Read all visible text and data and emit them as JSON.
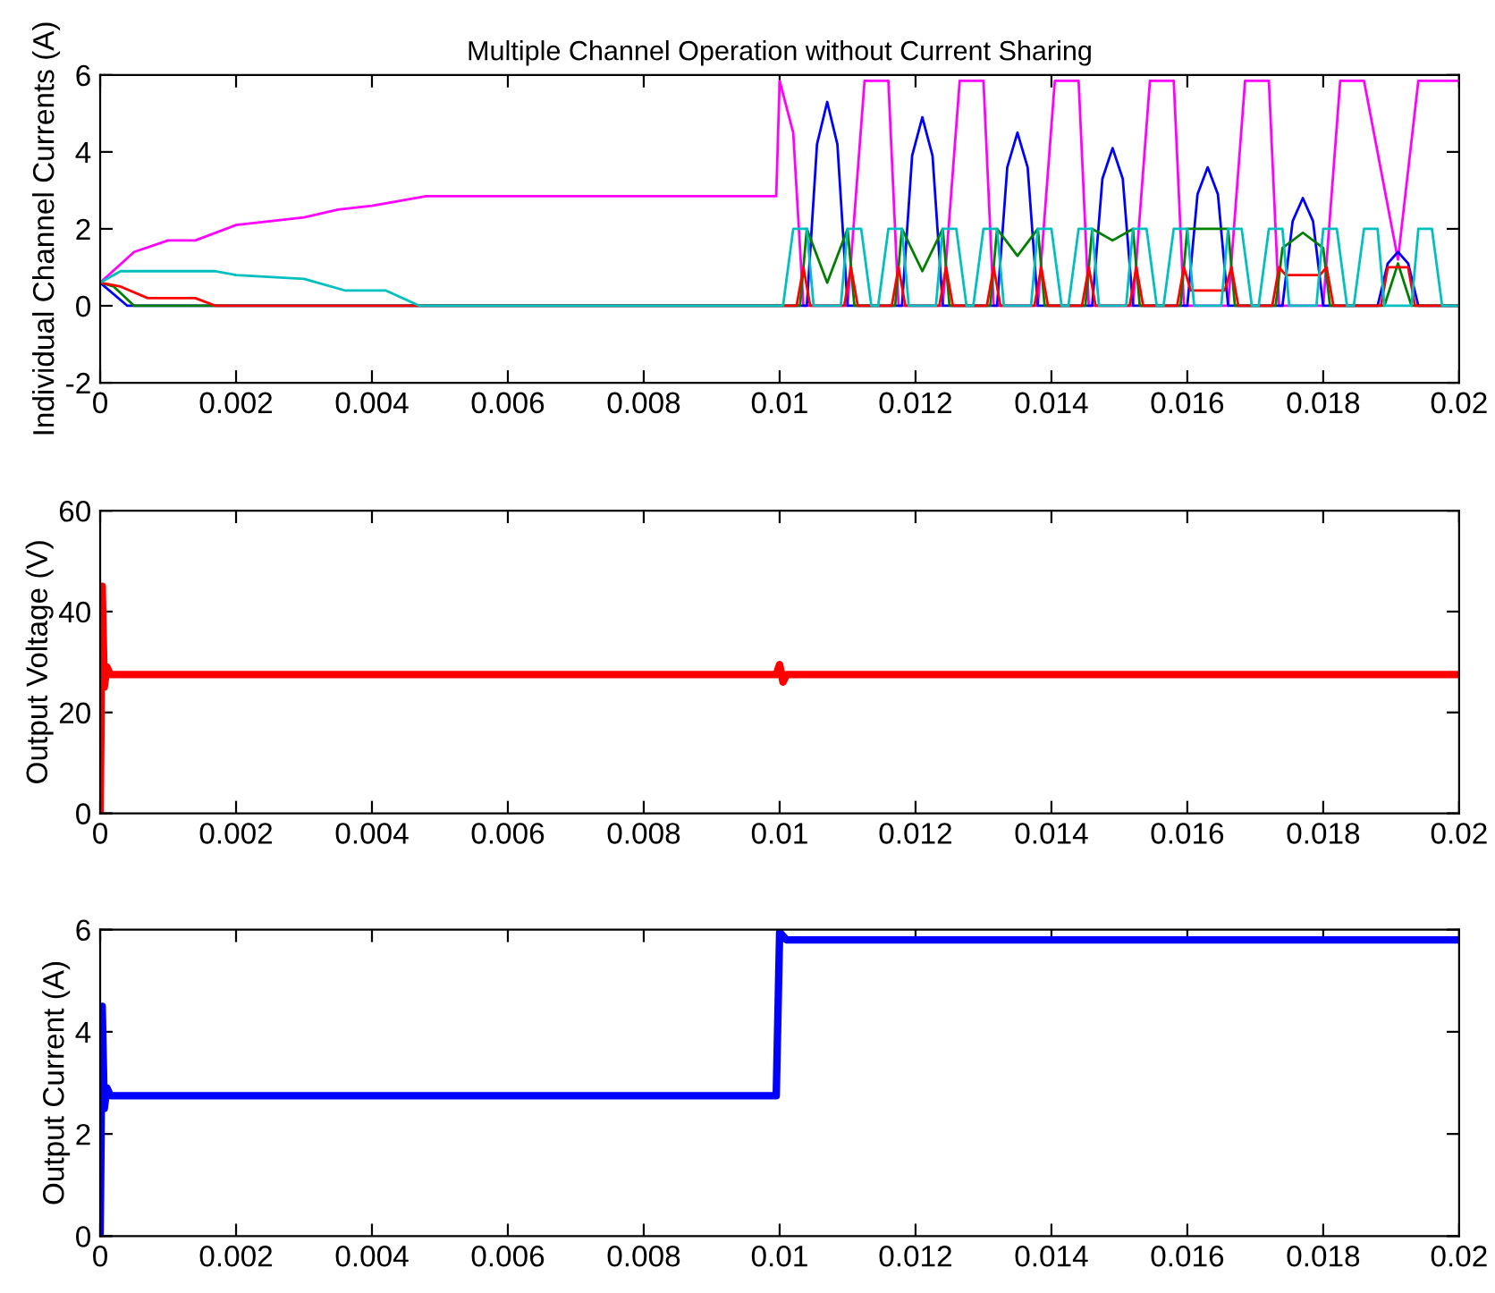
{
  "chart_data": [
    {
      "type": "line",
      "title": "Multiple Channel Operation without Current Sharing",
      "ylabel": "Individual Channel Currents (A)",
      "xlim": [
        0,
        0.02
      ],
      "ylim": [
        -2,
        6
      ],
      "xticks": [
        0,
        0.002,
        0.004,
        0.006,
        0.008,
        0.01,
        0.012,
        0.014,
        0.016,
        0.018,
        0.02
      ],
      "yticks": [
        -2,
        0,
        2,
        4,
        6
      ],
      "series": [
        {
          "color": "#ff00ff",
          "x": [
            0,
            0.0005,
            0.001,
            0.0014,
            0.002,
            0.0025,
            0.003,
            0.0035,
            0.004,
            0.0048,
            0.00995,
            0.01,
            0.0102,
            0.01035,
            0.011,
            0.01125,
            0.0116,
            0.01175,
            0.0124,
            0.01265,
            0.013,
            0.01315,
            0.0138,
            0.01405,
            0.0144,
            0.01455,
            0.0152,
            0.01545,
            0.0158,
            0.01595,
            0.0166,
            0.01685,
            0.0172,
            0.01735,
            0.018,
            0.01825,
            0.0186,
            0.0191,
            0.0194,
            0.02
          ],
          "values": [
            0.6,
            1.4,
            1.7,
            1.7,
            2.1,
            2.2,
            2.3,
            2.5,
            2.6,
            2.85,
            2.85,
            5.85,
            4.5,
            0,
            0,
            5.85,
            5.85,
            0,
            0,
            5.85,
            5.85,
            0,
            0,
            5.85,
            5.85,
            0,
            0,
            5.85,
            5.85,
            0,
            0,
            5.85,
            5.85,
            0,
            0,
            5.85,
            5.85,
            1.2,
            5.85,
            5.85
          ]
        },
        {
          "color": "#0000ff",
          "x": [
            0,
            0.0004,
            0.0104,
            0.01055,
            0.0107,
            0.01085,
            0.011,
            0.0118,
            0.01195,
            0.0121,
            0.01225,
            0.0124,
            0.0132,
            0.01335,
            0.0135,
            0.01365,
            0.0138,
            0.0146,
            0.01475,
            0.0149,
            0.01505,
            0.0152,
            0.016,
            0.01615,
            0.0163,
            0.01645,
            0.0166,
            0.0174,
            0.01755,
            0.0177,
            0.01785,
            0.018,
            0.0188,
            0.01895,
            0.0191,
            0.01925,
            0.0194,
            0.02
          ],
          "values": [
            0.6,
            0,
            0,
            4.2,
            5.3,
            4.2,
            0,
            0,
            3.9,
            4.9,
            3.9,
            0,
            0,
            3.6,
            4.5,
            3.6,
            0,
            0,
            3.3,
            4.1,
            3.3,
            0,
            0,
            2.9,
            3.6,
            2.9,
            0,
            0,
            2.2,
            2.8,
            2.2,
            0,
            0,
            1.1,
            1.4,
            1.1,
            0,
            0
          ]
        },
        {
          "color": "#008000",
          "x": [
            0,
            0.0002,
            0.0005,
            0.0103,
            0.0104,
            0.0107,
            0.011,
            0.0111,
            0.0117,
            0.0118,
            0.0121,
            0.0124,
            0.0125,
            0.0131,
            0.0132,
            0.0135,
            0.0138,
            0.0139,
            0.0145,
            0.0146,
            0.0149,
            0.0152,
            0.0153,
            0.0159,
            0.016,
            0.0163,
            0.0166,
            0.0167,
            0.0173,
            0.0174,
            0.0177,
            0.018,
            0.0181,
            0.0189,
            0.0191,
            0.0193,
            0.02
          ],
          "values": [
            0.6,
            0.5,
            0,
            0,
            2,
            0.6,
            2,
            0,
            0,
            2,
            0.9,
            2,
            0,
            0,
            2,
            1.3,
            2,
            0,
            0,
            2,
            1.7,
            2,
            0,
            0,
            2,
            2,
            2,
            0,
            0,
            1.5,
            1.9,
            1.5,
            0,
            0,
            1.1,
            0,
            0
          ]
        },
        {
          "color": "#ff0000",
          "x": [
            0,
            0.0003,
            0.0007,
            0.0014,
            0.0017,
            0.01025,
            0.01035,
            0.01045,
            0.01095,
            0.01105,
            0.01115,
            0.01165,
            0.01175,
            0.01185,
            0.01235,
            0.01245,
            0.01255,
            0.01305,
            0.01315,
            0.01325,
            0.01375,
            0.01385,
            0.01395,
            0.01445,
            0.01455,
            0.01465,
            0.01515,
            0.01525,
            0.01535,
            0.01585,
            0.01595,
            0.01605,
            0.01655,
            0.01665,
            0.01675,
            0.01725,
            0.01735,
            0.01745,
            0.01795,
            0.01805,
            0.01815,
            0.01885,
            0.01895,
            0.01925,
            0.01935,
            0.02
          ],
          "values": [
            0.6,
            0.5,
            0.2,
            0.2,
            0,
            0,
            1,
            0,
            0,
            1,
            0,
            0,
            1,
            0,
            0,
            1,
            0,
            0,
            1,
            0,
            0,
            1,
            0,
            0,
            1,
            0,
            0,
            1,
            0,
            0,
            1,
            0.4,
            0.4,
            1,
            0,
            0,
            1,
            0.8,
            0.8,
            1,
            0,
            0,
            1,
            1,
            0,
            0
          ]
        },
        {
          "color": "#00bfbf",
          "x": [
            0,
            0.0003,
            0.0017,
            0.002,
            0.003,
            0.0036,
            0.0042,
            0.0047,
            0.01005,
            0.0102,
            0.0104,
            0.0105,
            0.0109,
            0.011,
            0.0112,
            0.01135,
            0.01145,
            0.0116,
            0.0118,
            0.0119,
            0.0123,
            0.0124,
            0.0126,
            0.01275,
            0.01285,
            0.013,
            0.0132,
            0.0133,
            0.0137,
            0.0138,
            0.014,
            0.01415,
            0.01425,
            0.0144,
            0.0146,
            0.0147,
            0.0151,
            0.0152,
            0.0154,
            0.01555,
            0.01565,
            0.0158,
            0.016,
            0.0161,
            0.0165,
            0.0166,
            0.0168,
            0.01695,
            0.01705,
            0.0172,
            0.0174,
            0.0175,
            0.0179,
            0.018,
            0.0182,
            0.01835,
            0.01845,
            0.0186,
            0.0188,
            0.0189,
            0.0193,
            0.0194,
            0.0196,
            0.01975,
            0.02
          ],
          "values": [
            0.6,
            0.9,
            0.9,
            0.8,
            0.7,
            0.4,
            0.4,
            0,
            0,
            2,
            2,
            0,
            0,
            2,
            2,
            0,
            0,
            2,
            2,
            0,
            0,
            2,
            2,
            0,
            0,
            2,
            2,
            0,
            0,
            2,
            2,
            0,
            0,
            2,
            2,
            0,
            0,
            2,
            2,
            0,
            0,
            2,
            2,
            0,
            0,
            2,
            2,
            0,
            0,
            2,
            2,
            0,
            0,
            2,
            2,
            0,
            0,
            2,
            2,
            0,
            0,
            2,
            2,
            0,
            0
          ]
        }
      ]
    },
    {
      "type": "line",
      "ylabel": "Output Voltage (V)",
      "xlim": [
        0,
        0.02
      ],
      "ylim": [
        0,
        60
      ],
      "xticks": [
        0,
        0.002,
        0.004,
        0.006,
        0.008,
        0.01,
        0.012,
        0.014,
        0.016,
        0.018,
        0.02
      ],
      "yticks": [
        0,
        20,
        40,
        60
      ],
      "series": [
        {
          "color": "#ff0000",
          "x": [
            0,
            3e-05,
            6e-05,
            0.0001,
            0.00015,
            0.00995,
            0.01,
            0.01005,
            0.0101,
            0.02
          ],
          "values": [
            0,
            45,
            25,
            29,
            27.5,
            27.5,
            29.5,
            26,
            27.5,
            27.5
          ]
        }
      ]
    },
    {
      "type": "line",
      "ylabel": "Output Current (A)",
      "xlim": [
        0,
        0.02
      ],
      "ylim": [
        0,
        6
      ],
      "xticks": [
        0,
        0.002,
        0.004,
        0.006,
        0.008,
        0.01,
        0.012,
        0.014,
        0.016,
        0.018,
        0.02
      ],
      "yticks": [
        0,
        2,
        4,
        6
      ],
      "series": [
        {
          "color": "#0000ff",
          "x": [
            0,
            3e-05,
            6e-05,
            0.0001,
            0.00015,
            0.00995,
            0.01,
            0.0101,
            0.02
          ],
          "values": [
            0,
            4.5,
            2.5,
            2.9,
            2.75,
            2.75,
            5.95,
            5.8,
            5.8
          ]
        }
      ]
    }
  ]
}
